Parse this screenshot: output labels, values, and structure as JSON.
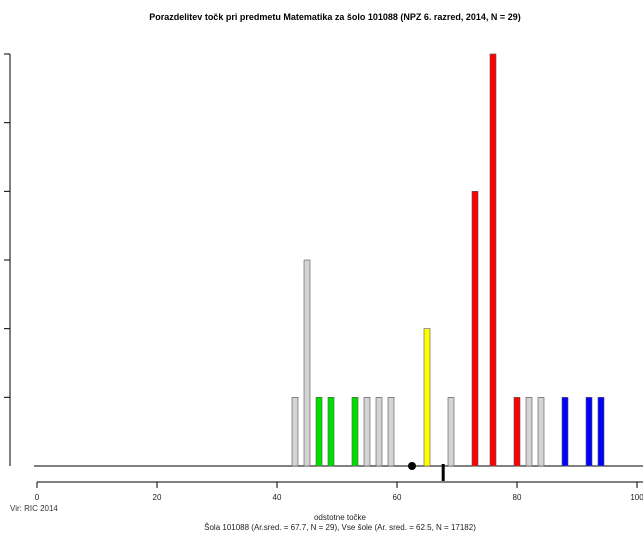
{
  "chart_data": {
    "type": "bar",
    "title": "Porazdelitev točk pri predmetu Matematika za šolo 101088 (NPZ 6. razred, 2014, N = 29)",
    "xlabel": "odstotne točke",
    "footnote": "Šola 101088 (Ar.sred. = 67.7, N = 29), Vse šole (Ar. sred. = 62.5, N = 17182)",
    "source": "Vir: RIC 2014",
    "xlim": [
      0,
      100
    ],
    "ylim": [
      0,
      6
    ],
    "x_ticks": [
      0,
      20,
      40,
      60,
      80,
      100
    ],
    "x_tick_labels": [
      "0",
      "20",
      "40",
      "60",
      "80",
      "100"
    ],
    "y_ticks": [
      1,
      2,
      3,
      4,
      5,
      6
    ],
    "grid": false,
    "bars": [
      {
        "x": 43,
        "value": 1,
        "color": "#d3d3d3"
      },
      {
        "x": 45,
        "value": 3,
        "color": "#d3d3d3"
      },
      {
        "x": 47,
        "value": 1,
        "color": "#00e000"
      },
      {
        "x": 49,
        "value": 1,
        "color": "#00e000"
      },
      {
        "x": 53,
        "value": 1,
        "color": "#00e000"
      },
      {
        "x": 55,
        "value": 1,
        "color": "#d3d3d3"
      },
      {
        "x": 57,
        "value": 1,
        "color": "#d3d3d3"
      },
      {
        "x": 59,
        "value": 1,
        "color": "#d3d3d3"
      },
      {
        "x": 65,
        "value": 2,
        "color": "#ffff00"
      },
      {
        "x": 69,
        "value": 1,
        "color": "#d3d3d3"
      },
      {
        "x": 73,
        "value": 4,
        "color": "#ff0000"
      },
      {
        "x": 76,
        "value": 6,
        "color": "#ff0000"
      },
      {
        "x": 80,
        "value": 1,
        "color": "#ff0000"
      },
      {
        "x": 82,
        "value": 1,
        "color": "#d3d3d3"
      },
      {
        "x": 84,
        "value": 1,
        "color": "#d3d3d3"
      },
      {
        "x": 88,
        "value": 1,
        "color": "#0000ff"
      },
      {
        "x": 92,
        "value": 1,
        "color": "#0000ff"
      },
      {
        "x": 94,
        "value": 1,
        "color": "#0000ff"
      }
    ],
    "markers": {
      "all_schools_mean": 62.5,
      "school_mean": 67.7
    }
  }
}
